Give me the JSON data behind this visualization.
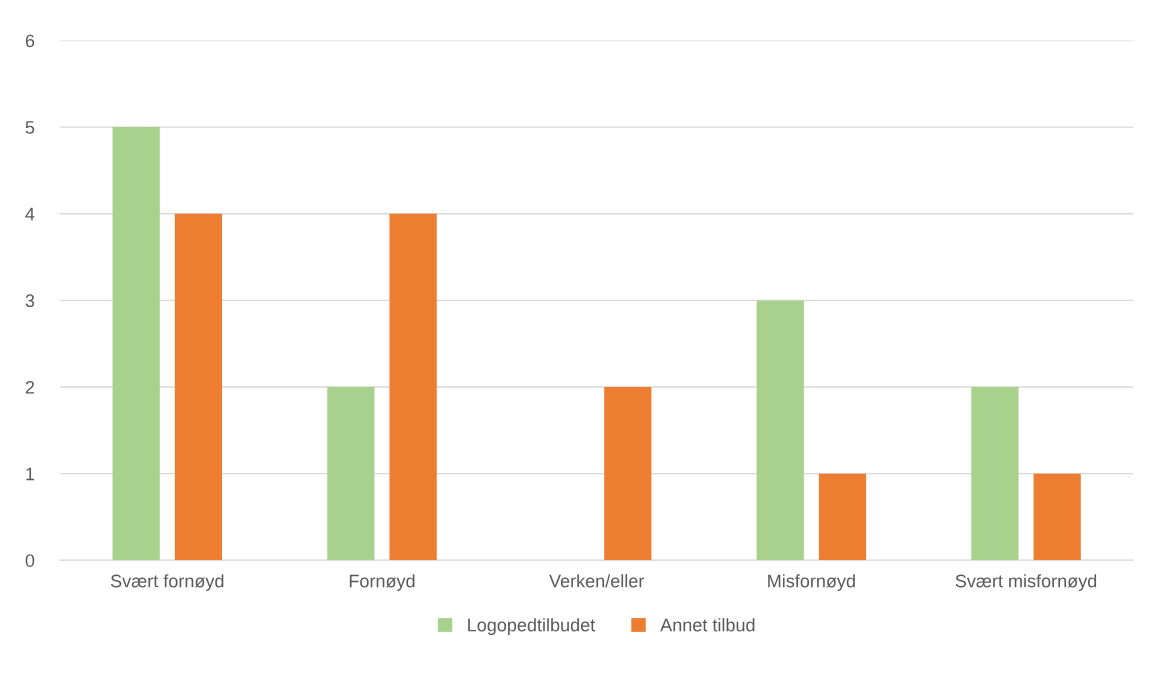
{
  "chart_data": {
    "type": "bar",
    "categories": [
      "Svært fornøyd",
      "Fornøyd",
      "Verken/eller",
      "Misfornøyd",
      "Svært misfornøyd"
    ],
    "series": [
      {
        "name": "Logopedtilbudet",
        "color": "#a9d18e",
        "values": [
          5,
          2,
          0,
          3,
          2
        ]
      },
      {
        "name": "Annet tilbud",
        "color": "#ed7d31",
        "values": [
          4,
          4,
          2,
          1,
          1
        ]
      }
    ],
    "ylim": [
      0,
      6
    ],
    "yticks": [
      0,
      1,
      2,
      3,
      4,
      5,
      6
    ],
    "grid": "y",
    "legend": "bottom"
  }
}
